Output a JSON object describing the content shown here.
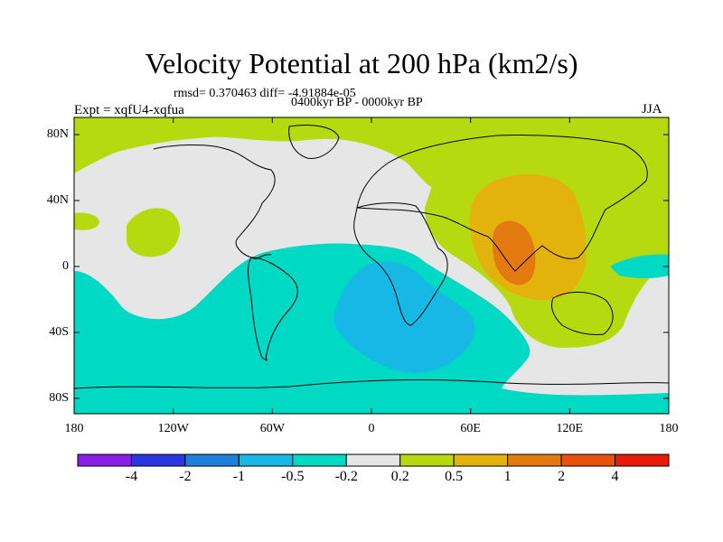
{
  "title": "Velocity Potential at 200 hPa (km2/s)",
  "stats_line": "rmsd= 0.370463  diff= -4.91884e-05",
  "period_line": "0400kyr BP - 0000kyr BP",
  "experiment": "Expt = xqfU4-xqfua",
  "season": "JJA",
  "y_axis_labels": [
    "80N",
    "40N",
    "0",
    "40S",
    "80S"
  ],
  "x_axis_labels": [
    "180",
    "120W",
    "60W",
    "0",
    "60E",
    "120E",
    "180"
  ],
  "colorbar": {
    "labels": [
      "-4",
      "-2",
      "-1",
      "-0.5",
      "-0.2",
      "0.2",
      "0.5",
      "1",
      "2",
      "4"
    ],
    "colors": [
      "#8a1ee6",
      "#2a37e0",
      "#1e7fdc",
      "#17b8e6",
      "#00d9c4",
      "#e6e6e6",
      "#b6da0f",
      "#e4b20c",
      "#e37a10",
      "#e8500e",
      "#e81a0a"
    ]
  },
  "field_colors": {
    "positive_0_2_to_0_5": "#b6da0f",
    "neutral": "#e6e6e6",
    "negative_0_2_to_0_5": "#00d9c4",
    "negative_0_5_to_1": "#17b8e6",
    "positive_0_5_to_1": "#e4b20c",
    "positive_1_to_2": "#e37a10"
  }
}
